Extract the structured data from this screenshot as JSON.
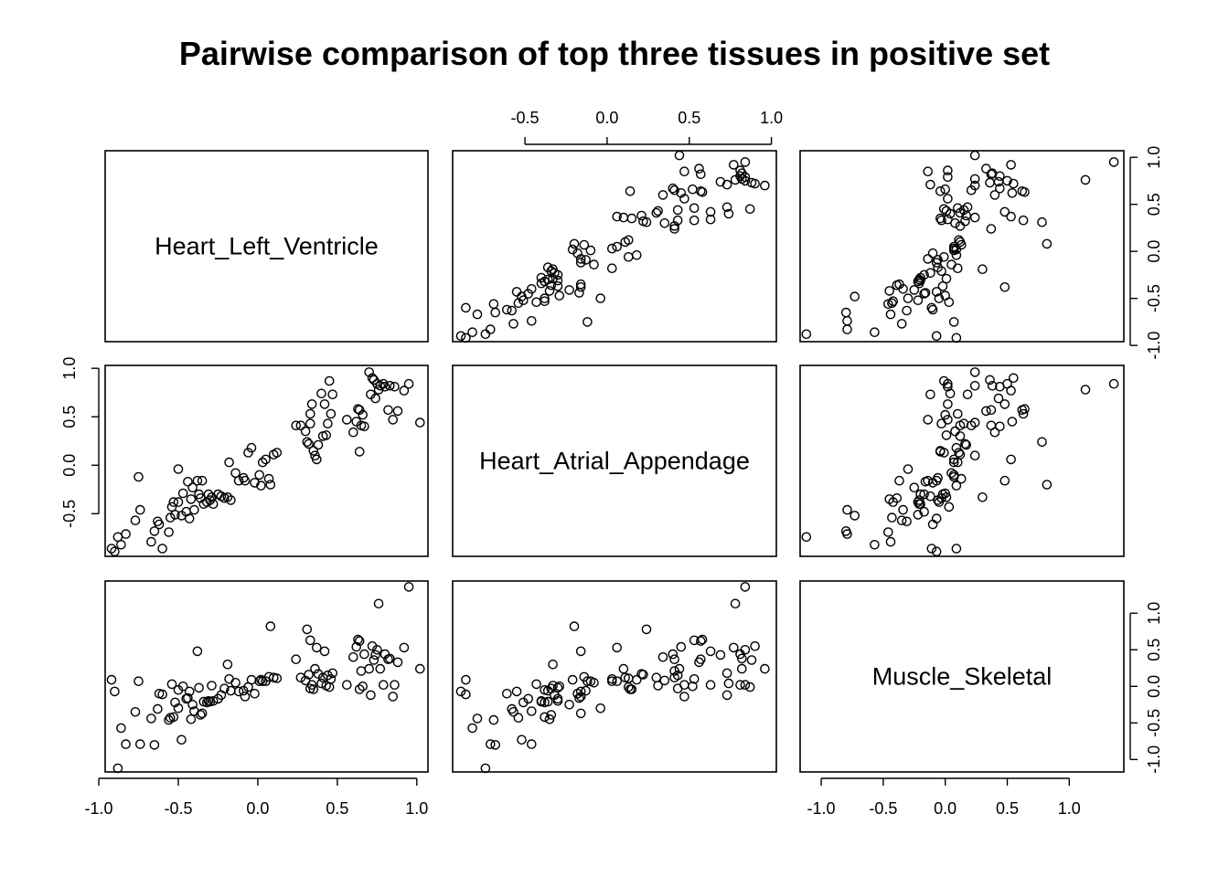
{
  "chart_data": {
    "type": "scatter",
    "layout": "scatterplot-matrix",
    "title": "Pairwise comparison of top three tissues in positive set",
    "variables": [
      "Heart_Left_Ventricle",
      "Heart_Atrial_Appendage",
      "Muscle_Skeletal"
    ],
    "ranges": {
      "Heart_Left_Ventricle": [
        -0.96,
        1.07
      ],
      "Heart_Atrial_Appendage": [
        -0.94,
        1.03
      ],
      "Muscle_Skeletal": [
        -1.17,
        1.44
      ]
    },
    "ticks": {
      "Heart_Left_Ventricle": [
        -1.0,
        -0.5,
        0.0,
        0.5,
        1.0
      ],
      "Heart_Atrial_Appendage": [
        -0.5,
        0.0,
        0.5,
        1.0
      ],
      "Muscle_Skeletal": [
        -1.0,
        -0.5,
        0.0,
        0.5,
        1.0
      ]
    },
    "tick_labels": {
      "Heart_Left_Ventricle": [
        "-1.0",
        "-0.5",
        "0.0",
        "0.5",
        "1.0"
      ],
      "Heart_Atrial_Appendage": [
        "-0.5",
        "0.0",
        "0.5",
        "1.0"
      ],
      "Muscle_Skeletal": [
        "-1.0",
        "-0.5",
        "0.0",
        "0.5",
        "1.0"
      ]
    },
    "grid": false,
    "points": [
      [
        -0.92,
        -0.86,
        0.09
      ],
      [
        -0.9,
        -0.89,
        -0.07
      ],
      [
        -0.88,
        -0.74,
        -1.12
      ],
      [
        -0.86,
        -0.82,
        -0.57
      ],
      [
        -0.83,
        -0.71,
        -0.79
      ],
      [
        -0.77,
        -0.57,
        -0.35
      ],
      [
        -0.75,
        -0.12,
        0.07
      ],
      [
        -0.74,
        -0.46,
        -0.79
      ],
      [
        -0.67,
        -0.79,
        -0.44
      ],
      [
        -0.65,
        -0.68,
        -0.8
      ],
      [
        -0.63,
        -0.58,
        -0.31
      ],
      [
        -0.62,
        -0.61,
        -0.1
      ],
      [
        -0.6,
        -0.86,
        -0.11
      ],
      [
        -0.56,
        -0.69,
        -0.46
      ],
      [
        -0.55,
        -0.54,
        -0.43
      ],
      [
        -0.54,
        -0.43,
        0.03
      ],
      [
        -0.53,
        -0.38,
        -0.42
      ],
      [
        -0.52,
        -0.51,
        -0.22
      ],
      [
        -0.5,
        -0.38,
        -0.05
      ],
      [
        -0.5,
        -0.04,
        -0.3
      ],
      [
        -0.48,
        -0.52,
        -0.73
      ],
      [
        -0.47,
        -0.29,
        0.0
      ],
      [
        -0.45,
        -0.48,
        -0.17
      ],
      [
        -0.44,
        -0.17,
        -0.16
      ],
      [
        -0.43,
        -0.55,
        -0.07
      ],
      [
        -0.42,
        -0.35,
        -0.45
      ],
      [
        -0.41,
        -0.23,
        -0.25
      ],
      [
        -0.4,
        -0.46,
        -0.34
      ],
      [
        -0.38,
        -0.16,
        0.48
      ],
      [
        -0.37,
        -0.3,
        -0.02
      ],
      [
        -0.36,
        -0.34,
        -0.39
      ],
      [
        -0.35,
        -0.16,
        -0.37
      ],
      [
        -0.34,
        -0.4,
        -0.21
      ],
      [
        -0.32,
        -0.38,
        -0.22
      ],
      [
        -0.31,
        -0.3,
        -0.2
      ],
      [
        -0.3,
        -0.36,
        -0.21
      ],
      [
        -0.29,
        -0.33,
        0.01
      ],
      [
        -0.28,
        -0.4,
        -0.2
      ],
      [
        -0.25,
        -0.3,
        -0.17
      ],
      [
        -0.23,
        -0.32,
        -0.12
      ],
      [
        -0.21,
        -0.34,
        -0.03
      ],
      [
        -0.19,
        -0.33,
        0.3
      ],
      [
        -0.18,
        0.03,
        0.1
      ],
      [
        -0.17,
        -0.36,
        -0.06
      ],
      [
        -0.14,
        -0.08,
        0.05
      ],
      [
        -0.12,
        -0.16,
        -0.07
      ],
      [
        -0.09,
        -0.13,
        -0.06
      ],
      [
        -0.08,
        -0.16,
        -0.14
      ],
      [
        -0.06,
        0.13,
        -0.01
      ],
      [
        -0.04,
        0.18,
        0.09
      ],
      [
        -0.02,
        -0.18,
        -0.1
      ],
      [
        0.01,
        -0.1,
        0.07
      ],
      [
        0.02,
        -0.21,
        0.09
      ],
      [
        0.03,
        0.03,
        0.07
      ],
      [
        0.05,
        0.06,
        0.07
      ],
      [
        0.07,
        -0.14,
        0.13
      ],
      [
        0.08,
        -0.2,
        0.82
      ],
      [
        0.1,
        0.11,
        0.12
      ],
      [
        0.12,
        0.13,
        0.11
      ],
      [
        0.24,
        0.41,
        0.37
      ],
      [
        0.27,
        0.41,
        0.12
      ],
      [
        0.3,
        0.35,
        0.08
      ],
      [
        0.31,
        0.24,
        0.78
      ],
      [
        0.32,
        0.22,
        0.16
      ],
      [
        0.33,
        0.43,
        -0.03
      ],
      [
        0.33,
        0.53,
        0.63
      ],
      [
        0.34,
        0.63,
        0.02
      ],
      [
        0.35,
        0.15,
        -0.04
      ],
      [
        0.36,
        0.1,
        0.24
      ],
      [
        0.37,
        0.06,
        0.53
      ],
      [
        0.38,
        0.21,
        0.17
      ],
      [
        0.4,
        0.74,
        0.04
      ],
      [
        0.41,
        0.3,
        0.12
      ],
      [
        0.42,
        0.63,
        0.48
      ],
      [
        0.43,
        0.31,
        0.01
      ],
      [
        0.44,
        0.43,
        0.15
      ],
      [
        0.45,
        0.87,
        -0.01
      ],
      [
        0.46,
        0.53,
        0.1
      ],
      [
        0.47,
        0.73,
        0.18
      ],
      [
        0.56,
        0.47,
        0.02
      ],
      [
        0.6,
        0.34,
        0.4
      ],
      [
        0.62,
        0.45,
        0.54
      ],
      [
        0.63,
        0.58,
        0.64
      ],
      [
        0.64,
        0.57,
        0.62
      ],
      [
        0.64,
        0.14,
        -0.04
      ],
      [
        0.65,
        0.41,
        0.21
      ],
      [
        0.66,
        0.52,
        0.0
      ],
      [
        0.67,
        0.4,
        0.44
      ],
      [
        0.7,
        0.96,
        0.24
      ],
      [
        0.71,
        0.73,
        -0.12
      ],
      [
        0.72,
        0.9,
        0.55
      ],
      [
        0.73,
        0.88,
        0.36
      ],
      [
        0.74,
        0.69,
        0.43
      ],
      [
        0.75,
        0.84,
        0.5
      ],
      [
        0.76,
        0.78,
        1.13
      ],
      [
        0.77,
        0.82,
        0.24
      ],
      [
        0.79,
        0.84,
        0.02
      ],
      [
        0.8,
        0.81,
        0.44
      ],
      [
        0.82,
        0.57,
        0.37
      ],
      [
        0.83,
        0.82,
        0.38
      ],
      [
        0.85,
        0.47,
        -0.14
      ],
      [
        0.86,
        0.81,
        0.02
      ],
      [
        0.88,
        0.56,
        0.33
      ],
      [
        0.92,
        0.77,
        0.53
      ],
      [
        0.95,
        0.84,
        1.36
      ],
      [
        1.02,
        0.44,
        0.24
      ]
    ]
  }
}
